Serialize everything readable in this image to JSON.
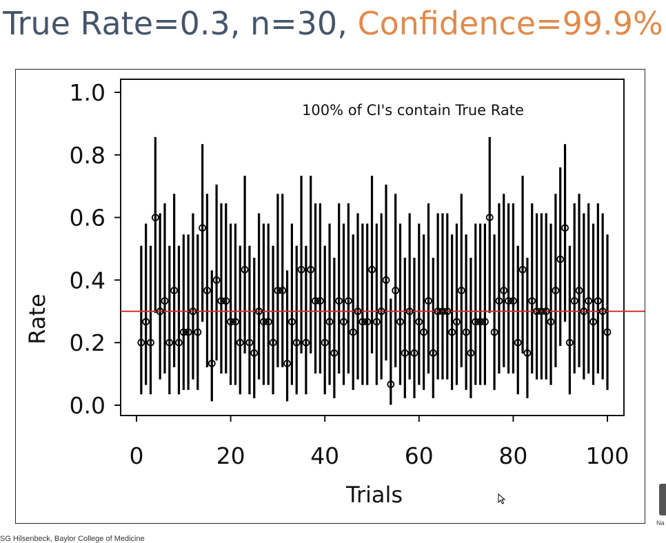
{
  "title": {
    "part1": "True Rate=0.3, n=30, ",
    "part2": "Confidence=99.9%"
  },
  "footer": {
    "text": "SG Hilsenbeck, Baylor College of Medicine"
  },
  "corner": {
    "label": "Na"
  },
  "colors": {
    "title": "#44546a",
    "accent": "#e08a4c",
    "true_rate_line": "#d0302a",
    "marks": "#000000"
  },
  "chart_data": {
    "type": "scatter",
    "annotation": "100% of CI's contain True Rate",
    "xlabel": "Trials",
    "ylabel": "Rate",
    "xlim": [
      0,
      100
    ],
    "ylim": [
      0,
      1
    ],
    "xticks": [
      "0",
      "20",
      "40",
      "60",
      "80",
      "100"
    ],
    "yticks": [
      "0.0",
      "0.2",
      "0.4",
      "0.6",
      "0.8",
      "1.0"
    ],
    "true_rate": 0.3,
    "n": 30,
    "confidence": 0.999,
    "grid": false,
    "x": [
      1,
      2,
      3,
      4,
      5,
      6,
      7,
      8,
      9,
      10,
      11,
      12,
      13,
      14,
      15,
      16,
      17,
      18,
      19,
      20,
      21,
      22,
      23,
      24,
      25,
      26,
      27,
      28,
      29,
      30,
      31,
      32,
      33,
      34,
      35,
      36,
      37,
      38,
      39,
      40,
      41,
      42,
      43,
      44,
      45,
      46,
      47,
      48,
      49,
      50,
      51,
      52,
      53,
      54,
      55,
      56,
      57,
      58,
      59,
      60,
      61,
      62,
      63,
      64,
      65,
      66,
      67,
      68,
      69,
      70,
      71,
      72,
      73,
      74,
      75,
      76,
      77,
      78,
      79,
      80,
      81,
      82,
      83,
      84,
      85,
      86,
      87,
      88,
      89,
      90,
      91,
      92,
      93,
      94,
      95,
      96,
      97,
      98,
      99,
      100
    ],
    "successes": [
      6,
      8,
      6,
      18,
      9,
      10,
      6,
      11,
      6,
      7,
      7,
      9,
      7,
      17,
      11,
      4,
      12,
      10,
      10,
      8,
      8,
      6,
      13,
      6,
      5,
      9,
      8,
      8,
      6,
      11,
      11,
      4,
      8,
      6,
      13,
      6,
      13,
      10,
      10,
      6,
      8,
      5,
      10,
      8,
      10,
      7,
      9,
      8,
      8,
      13,
      8,
      9,
      12,
      2,
      11,
      8,
      5,
      9,
      5,
      8,
      7,
      10,
      5,
      9,
      9,
      9,
      7,
      8,
      11,
      7,
      5,
      8,
      8,
      8,
      18,
      7,
      10,
      11,
      10,
      10,
      6,
      13,
      5,
      10,
      9,
      9,
      9,
      8,
      11,
      14,
      17,
      6,
      10,
      11,
      9,
      10,
      8,
      10,
      9,
      7
    ]
  }
}
